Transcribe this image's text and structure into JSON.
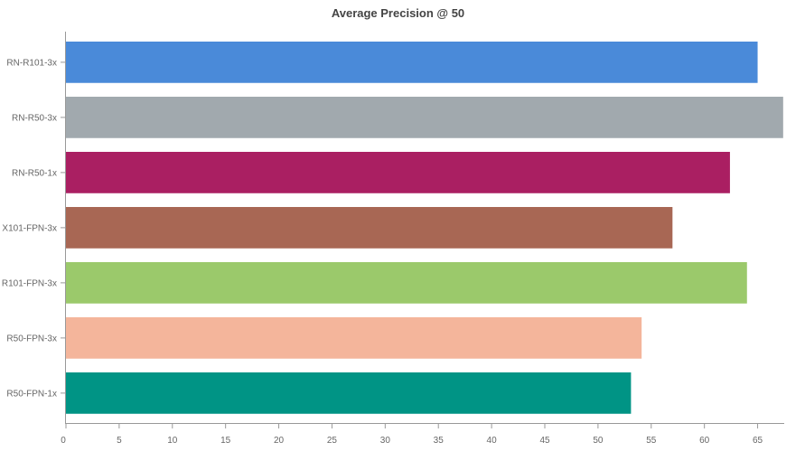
{
  "chart_data": {
    "type": "bar",
    "orientation": "horizontal",
    "title": "Average Precision @ 50",
    "xlabel": "",
    "ylabel": "",
    "categories": [
      "RN-R101-3x",
      "RN-R50-3x",
      "RN-R50-1x",
      "X101-FPN-3x",
      "R101-FPN-3x",
      "R50-FPN-3x",
      "R50-FPN-1x"
    ],
    "values": [
      65.0,
      67.4,
      62.4,
      57.0,
      64.0,
      54.1,
      53.1
    ],
    "colors": [
      "#4a8ad9",
      "#a1a9ae",
      "#aa1f62",
      "#a86754",
      "#9bc96b",
      "#f4b59b",
      "#009485"
    ],
    "xlim": [
      0,
      67.5
    ],
    "xticks": [
      0,
      5,
      10,
      15,
      20,
      25,
      30,
      35,
      40,
      45,
      50,
      55,
      60,
      65
    ],
    "grid": false,
    "legend": "none"
  }
}
